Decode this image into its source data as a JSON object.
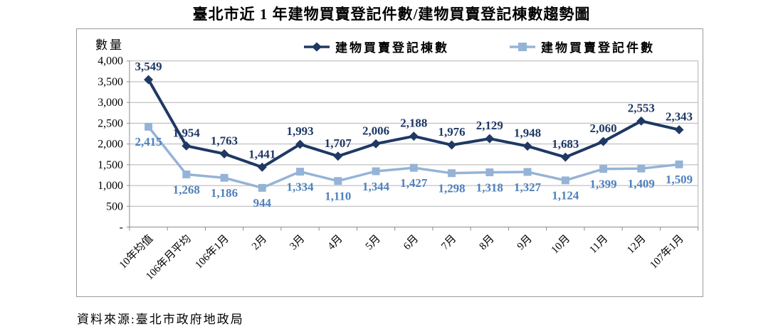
{
  "page": {
    "title": "臺北市近 1 年建物買賣登記件數/建物買賣登記棟數趨勢圖",
    "source_note": "資料來源:臺北市政府地政局"
  },
  "chart_data": {
    "type": "line",
    "title": "臺北市近 1 年建物買賣登記件數/建物買賣登記棟數趨勢圖",
    "xlabel": "",
    "ylabel": "數量",
    "ylim": [
      0,
      4000
    ],
    "ytick_step": 500,
    "ytick_labels": [
      "-",
      "500",
      "1,000",
      "1,500",
      "2,000",
      "2,500",
      "3,000",
      "3,500",
      "4,000"
    ],
    "grid": true,
    "legend_position": "top",
    "categories": [
      "10年均值",
      "106年月平均",
      "106年1月",
      "2月",
      "3月",
      "4月",
      "5月",
      "6月",
      "7月",
      "8月",
      "9月",
      "10月",
      "11月",
      "12月",
      "107年1月"
    ],
    "series": [
      {
        "name": "建物買賣登記棟數",
        "marker": "diamond",
        "color": "#1f3864",
        "label_color": "#1f3864",
        "values": [
          3549,
          1954,
          1763,
          1441,
          1993,
          1707,
          2006,
          2188,
          1976,
          2129,
          1948,
          1683,
          2060,
          2553,
          2343
        ]
      },
      {
        "name": "建物買賣登記件數",
        "marker": "square",
        "color": "#95b3d7",
        "label_color": "#4f81bd",
        "values": [
          2415,
          1268,
          1186,
          944,
          1334,
          1110,
          1344,
          1427,
          1298,
          1318,
          1327,
          1124,
          1399,
          1409,
          1509
        ]
      }
    ],
    "colors": {
      "grid": "#b3b3b3",
      "axis": "#8c8c8c",
      "box_border": "#9a9a9a"
    }
  }
}
